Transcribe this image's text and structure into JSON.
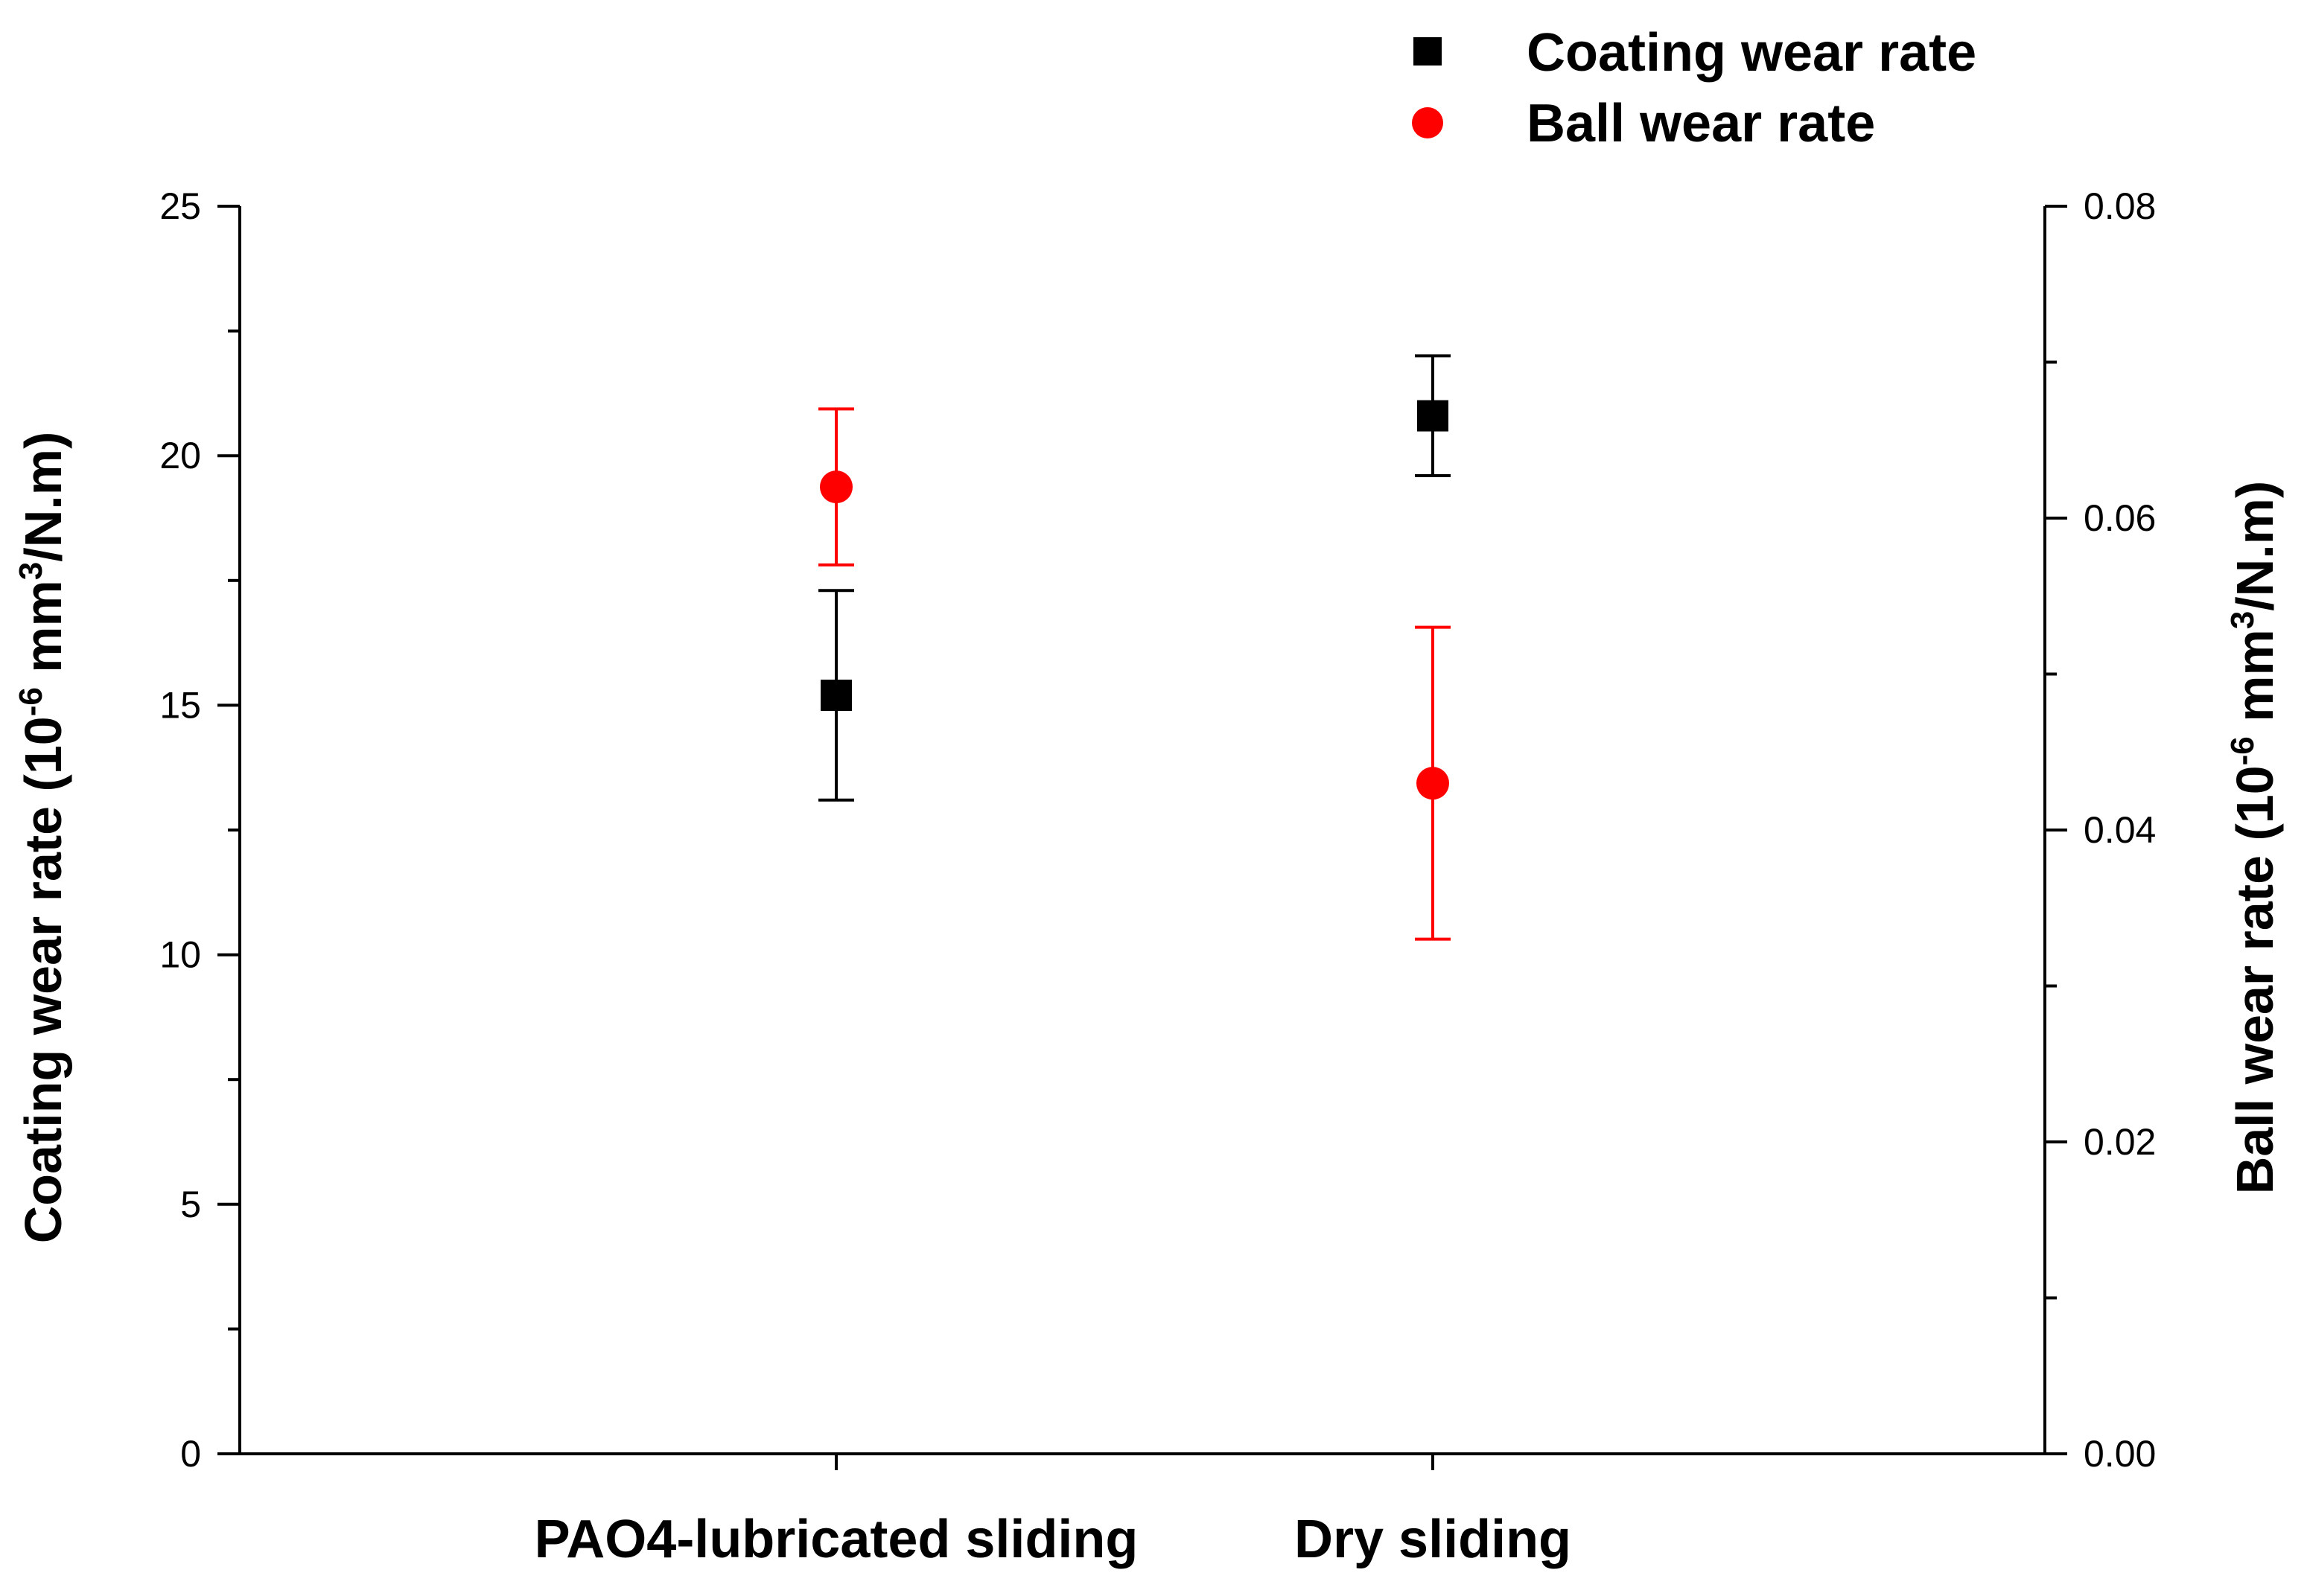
{
  "chart_data": {
    "type": "scatter",
    "categories": [
      "PAO4-lubricated sliding",
      "Dry sliding"
    ],
    "left_axis": {
      "label_main": "Coating wear rate (10",
      "label_sup1": "-6",
      "label_mid": " mm",
      "label_sup2": "3",
      "label_end": "/N.m)",
      "ylim": [
        0,
        25
      ],
      "major_ticks": [
        0,
        5,
        10,
        15,
        20,
        25
      ],
      "tick_labels": [
        "0",
        "5",
        "10",
        "15",
        "20",
        "25"
      ],
      "minor_step": 2.5
    },
    "right_axis": {
      "label_main": "Ball wear rate (10",
      "label_sup1": "-6",
      "label_mid": " mm",
      "label_sup2": "3",
      "label_end": "/N.m)",
      "ylim": [
        0,
        0.08
      ],
      "major_ticks": [
        0,
        0.02,
        0.04,
        0.06,
        0.08
      ],
      "tick_labels": [
        "0.00",
        "0.02",
        "0.04",
        "0.06",
        "0.08"
      ],
      "minor_step": 0.01
    },
    "series": [
      {
        "name": "Coating wear rate",
        "axis": "left",
        "marker": "square",
        "color": "#000000",
        "values": [
          15.2,
          20.8
        ],
        "errors": [
          2.1,
          1.2
        ]
      },
      {
        "name": "Ball wear rate",
        "axis": "right",
        "marker": "circle",
        "color": "#ff0000",
        "values": [
          0.062,
          0.043
        ],
        "errors": [
          0.005,
          0.01
        ]
      }
    ],
    "legend_position": "top-right",
    "grid": false
  }
}
